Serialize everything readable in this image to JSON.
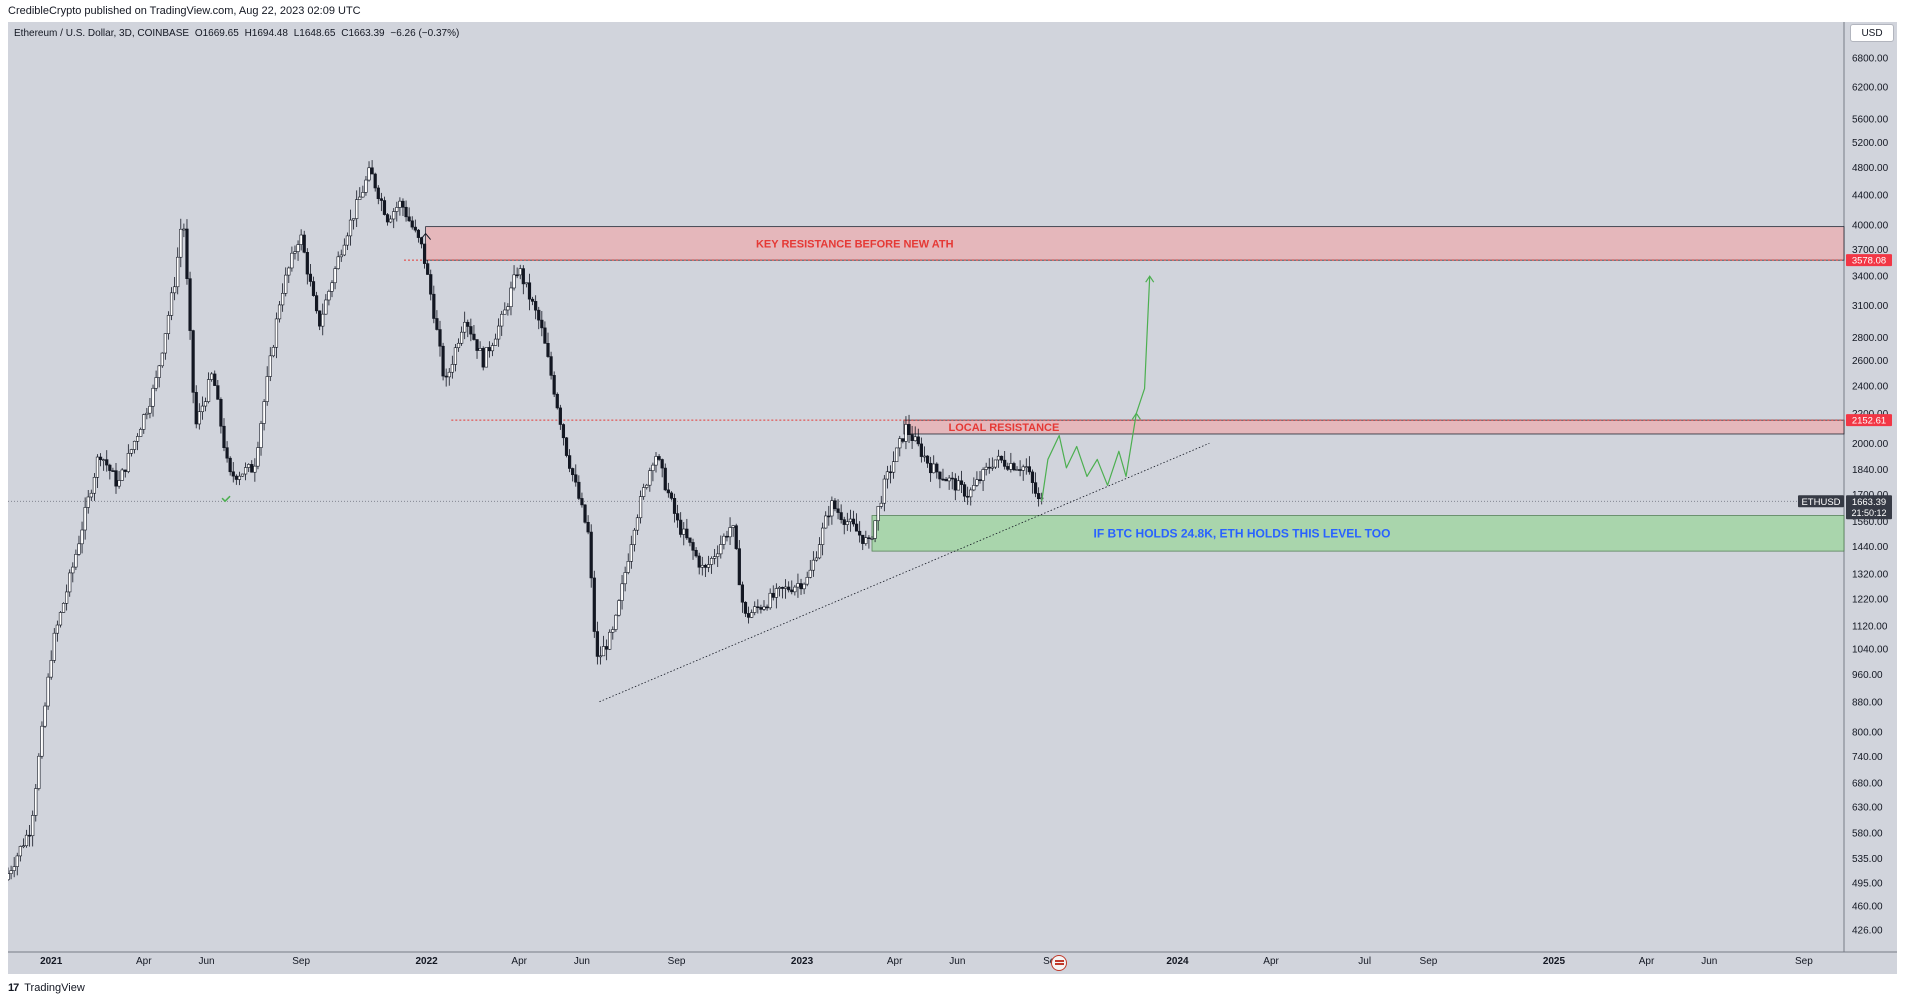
{
  "header": {
    "publish_line": "CredibleCrypto published on TradingView.com, Aug 22, 2023 02:09 UTC"
  },
  "legend": {
    "symbol": "Ethereum / U.S. Dollar, 3D, COINBASE",
    "open": "O1669.65",
    "high": "H1694.48",
    "low": "L1648.65",
    "close": "C1663.39",
    "change": "−6.26 (−0.37%)"
  },
  "currency_button": "USD",
  "footer": {
    "logo_text": "TradingView",
    "logo_mark": "17"
  },
  "colors": {
    "background": "#d1d4dc",
    "candle": "#131722",
    "resistance_fill": "#e8b4b8",
    "resistance_text": "#e53935",
    "support_fill": "#a5d6a7",
    "support_text": "#2962ff",
    "projection": "#4caf50",
    "price_label_bg": "#363a45",
    "resistance_label_bg": "#f23645"
  },
  "chart_data": {
    "type": "candlestick",
    "title": "Ethereum / U.S. Dollar, 3D, COINBASE",
    "y_scale": "log",
    "ylim": [
      400,
      7200
    ],
    "xlim": [
      "2020-11-20",
      "2025-10-10"
    ],
    "y_ticks": [
      "426.00",
      "460.00",
      "495.00",
      "535.00",
      "580.00",
      "630.00",
      "680.00",
      "740.00",
      "800.00",
      "880.00",
      "960.00",
      "1040.00",
      "1120.00",
      "1220.00",
      "1320.00",
      "1440.00",
      "1560.00",
      "1700.00",
      "1840.00",
      "2000.00",
      "2200.00",
      "2400.00",
      "2600.00",
      "2800.00",
      "3100.00",
      "3400.00",
      "3700.00",
      "4000.00",
      "4400.00",
      "4800.00",
      "5200.00",
      "5600.00",
      "6200.00",
      "6800.00"
    ],
    "x_ticks": [
      {
        "label": "2021",
        "date": "2021-01-01",
        "bold": true
      },
      {
        "label": "Apr",
        "date": "2021-04-01"
      },
      {
        "label": "Jun",
        "date": "2021-06-01"
      },
      {
        "label": "Sep",
        "date": "2021-09-01"
      },
      {
        "label": "2022",
        "date": "2022-01-01",
        "bold": true
      },
      {
        "label": "Apr",
        "date": "2022-04-01"
      },
      {
        "label": "Jun",
        "date": "2022-06-01"
      },
      {
        "label": "Sep",
        "date": "2022-09-01"
      },
      {
        "label": "2023",
        "date": "2023-01-01",
        "bold": true
      },
      {
        "label": "Apr",
        "date": "2023-04-01"
      },
      {
        "label": "Jun",
        "date": "2023-06-01"
      },
      {
        "label": "Sep",
        "date": "2023-09-01"
      },
      {
        "label": "2024",
        "date": "2024-01-01",
        "bold": true
      },
      {
        "label": "Apr",
        "date": "2024-04-01"
      },
      {
        "label": "Jul",
        "date": "2024-07-01"
      },
      {
        "label": "Sep",
        "date": "2024-09-01"
      },
      {
        "label": "2025",
        "date": "2025-01-01",
        "bold": true
      },
      {
        "label": "Apr",
        "date": "2025-04-01"
      },
      {
        "label": "Jun",
        "date": "2025-06-01"
      },
      {
        "label": "Sep",
        "date": "2025-09-01"
      }
    ],
    "price_path": [
      [
        "2020-11-20",
        500
      ],
      [
        "2020-12-15",
        590
      ],
      [
        "2021-01-05",
        1050
      ],
      [
        "2021-01-25",
        1350
      ],
      [
        "2021-02-20",
        1950
      ],
      [
        "2021-03-10",
        1750
      ],
      [
        "2021-04-15",
        2400
      ],
      [
        "2021-05-05",
        3400
      ],
      [
        "2021-05-12",
        4200
      ],
      [
        "2021-05-24",
        2100
      ],
      [
        "2021-06-10",
        2500
      ],
      [
        "2021-06-26",
        1800
      ],
      [
        "2021-07-20",
        1850
      ],
      [
        "2021-08-15",
        3200
      ],
      [
        "2021-09-03",
        3900
      ],
      [
        "2021-09-21",
        2900
      ],
      [
        "2021-10-15",
        3800
      ],
      [
        "2021-11-10",
        4750
      ],
      [
        "2021-11-27",
        4100
      ],
      [
        "2021-12-10",
        4300
      ],
      [
        "2021-12-31",
        3700
      ],
      [
        "2022-01-10",
        3100
      ],
      [
        "2022-01-22",
        2400
      ],
      [
        "2022-02-10",
        3000
      ],
      [
        "2022-02-28",
        2600
      ],
      [
        "2022-03-20",
        3000
      ],
      [
        "2022-04-03",
        3500
      ],
      [
        "2022-04-25",
        2900
      ],
      [
        "2022-05-10",
        2300
      ],
      [
        "2022-05-20",
        1950
      ],
      [
        "2022-06-10",
        1500
      ],
      [
        "2022-06-18",
        1000
      ],
      [
        "2022-07-05",
        1100
      ],
      [
        "2022-07-25",
        1550
      ],
      [
        "2022-08-14",
        1950
      ],
      [
        "2022-09-05",
        1550
      ],
      [
        "2022-10-01",
        1330
      ],
      [
        "2022-10-28",
        1550
      ],
      [
        "2022-11-09",
        1150
      ],
      [
        "2022-12-15",
        1250
      ],
      [
        "2023-01-10",
        1300
      ],
      [
        "2023-02-01",
        1650
      ],
      [
        "2023-03-10",
        1450
      ],
      [
        "2023-03-25",
        1750
      ],
      [
        "2023-04-15",
        2100
      ],
      [
        "2023-05-10",
        1850
      ],
      [
        "2023-06-15",
        1700
      ],
      [
        "2023-07-10",
        1900
      ],
      [
        "2023-08-10",
        1850
      ],
      [
        "2023-08-22",
        1663
      ]
    ],
    "current_price": {
      "label": "1663.39",
      "symbol": "ETHUSD",
      "countdown": "21:50:12",
      "value": 1663.39
    },
    "zones": [
      {
        "name": "KEY RESISTANCE BEFORE NEW ATH",
        "from": 3578.08,
        "to": 3980,
        "start": "2021-12-31",
        "label_value": "3578.08"
      },
      {
        "name": "LOCAL RESISTANCE",
        "from": 2060,
        "to": 2152.61,
        "start": "2023-04-10",
        "label_value": "2152.61"
      },
      {
        "name": "IF BTC HOLDS 24.8K, ETH HOLDS THIS LEVEL TOO",
        "from": 1420,
        "to": 1590,
        "start": "2023-03-10"
      }
    ],
    "dotted_levels": [
      {
        "value": 3578.08,
        "start": "2021-12-10"
      },
      {
        "value": 2152.61,
        "start": "2022-01-25"
      }
    ],
    "trendline": {
      "from": [
        "2022-06-18",
        880
      ],
      "to": [
        "2024-02-01",
        2000
      ]
    },
    "projection": [
      [
        "2023-08-22",
        1663
      ],
      [
        "2023-08-28",
        1900
      ],
      [
        "2023-09-08",
        2050
      ],
      [
        "2023-09-15",
        1850
      ],
      [
        "2023-09-25",
        1980
      ],
      [
        "2023-10-05",
        1800
      ],
      [
        "2023-10-15",
        1900
      ],
      [
        "2023-10-25",
        1750
      ],
      [
        "2023-11-05",
        1950
      ],
      [
        "2023-11-12",
        1800
      ],
      [
        "2023-11-22",
        2200
      ],
      [
        "2023-11-30",
        2380
      ],
      [
        "2023-12-05",
        3400
      ]
    ]
  }
}
